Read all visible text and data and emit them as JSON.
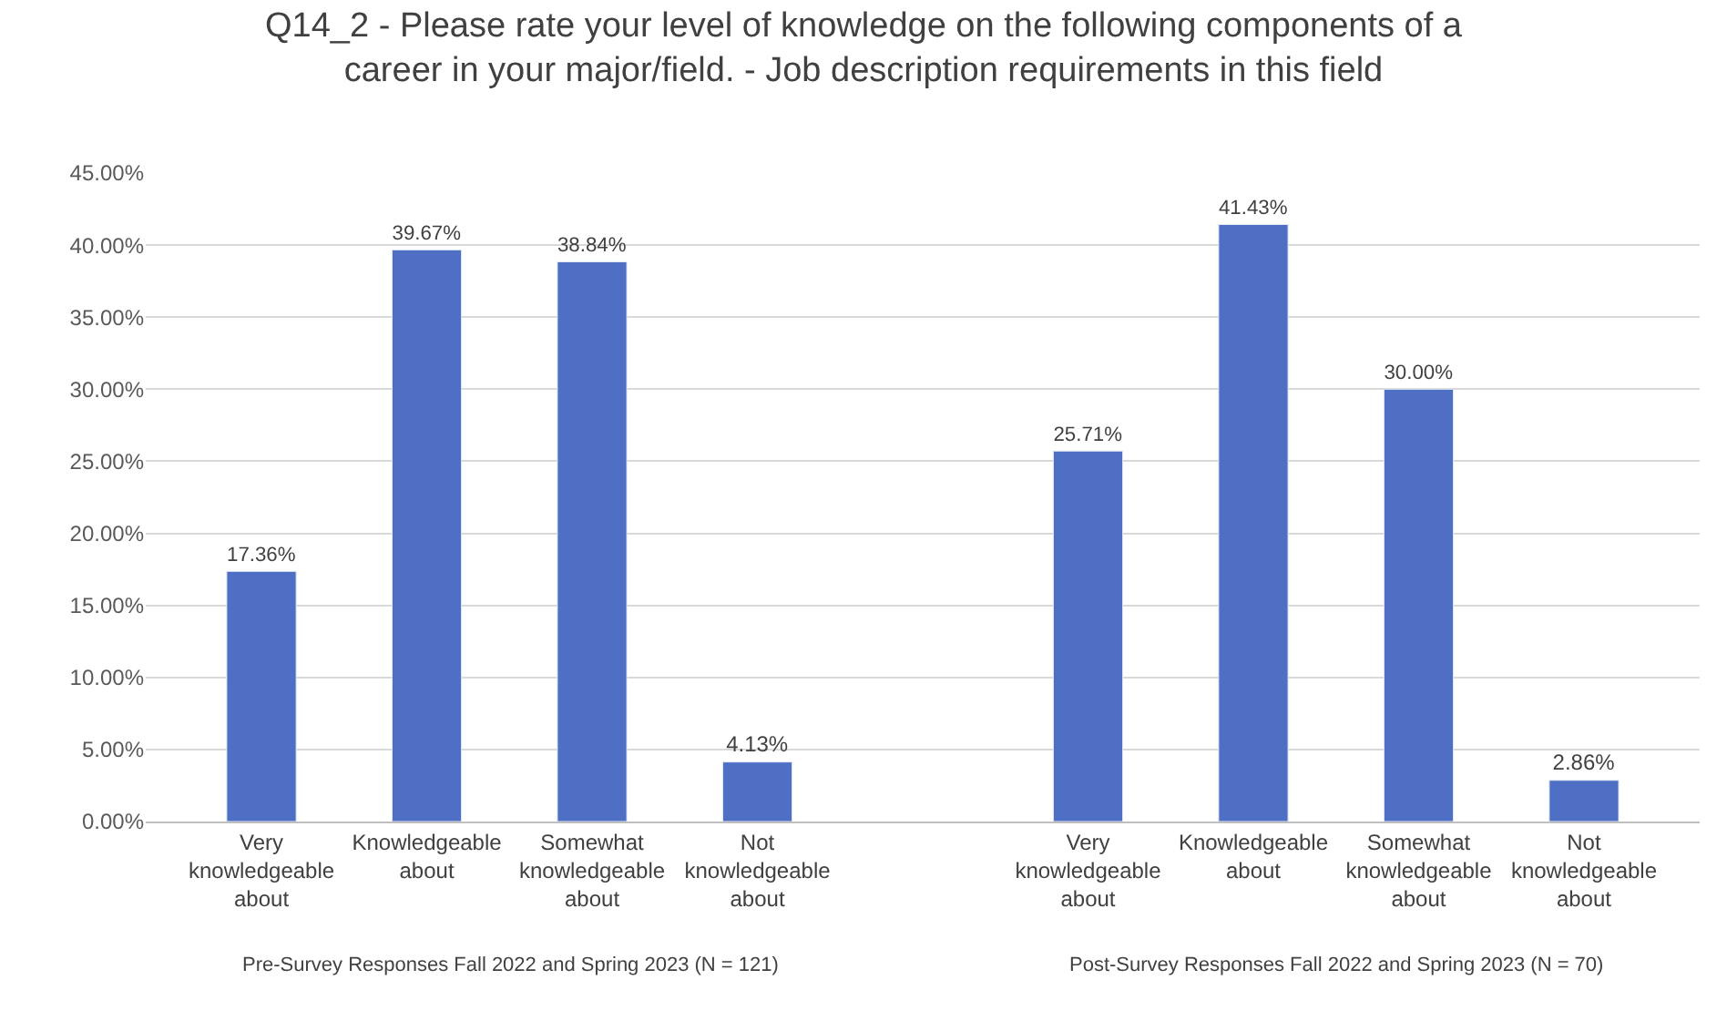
{
  "chart_data": {
    "type": "bar",
    "title": "Q14_2 - Please rate your level of knowledge on the following components of a career in your major/field. - Job description requirements in this field",
    "categories": [
      "Very knowledgeable about",
      "Knowledgeable about",
      "Somewhat knowledgeable about",
      "Not knowledgeable about",
      null,
      "Very knowledgeable about",
      "Knowledgeable about",
      "Somewhat knowledgeable about",
      "Not knowledgeable about"
    ],
    "values": [
      17.36,
      39.67,
      38.84,
      4.13,
      null,
      25.71,
      41.43,
      30.0,
      2.86
    ],
    "value_labels": [
      "17.36%",
      "39.67%",
      "38.84%",
      "4.13%",
      null,
      "25.71%",
      "41.43%",
      "30.00%",
      "2.86%"
    ],
    "color": "#4f6fc4",
    "ylim": [
      0,
      45
    ],
    "yticks": [
      {
        "value": 0,
        "label": "0.00%"
      },
      {
        "value": 5,
        "label": "5.00%"
      },
      {
        "value": 10,
        "label": "10.00%"
      },
      {
        "value": 15,
        "label": "15.00%"
      },
      {
        "value": 20,
        "label": "20.00%"
      },
      {
        "value": 25,
        "label": "25.00%"
      },
      {
        "value": 30,
        "label": "30.00%"
      },
      {
        "value": 35,
        "label": "35.00%"
      },
      {
        "value": 40,
        "label": "40.00%"
      },
      {
        "value": 45,
        "label": "45.00%"
      }
    ],
    "grid": "y",
    "annotations": [
      "Pre-Survey Responses Fall 2022 and Spring 2023 (N = 121)",
      "Post-Survey Responses Fall 2022 and Spring 2023 (N = 70)"
    ]
  }
}
